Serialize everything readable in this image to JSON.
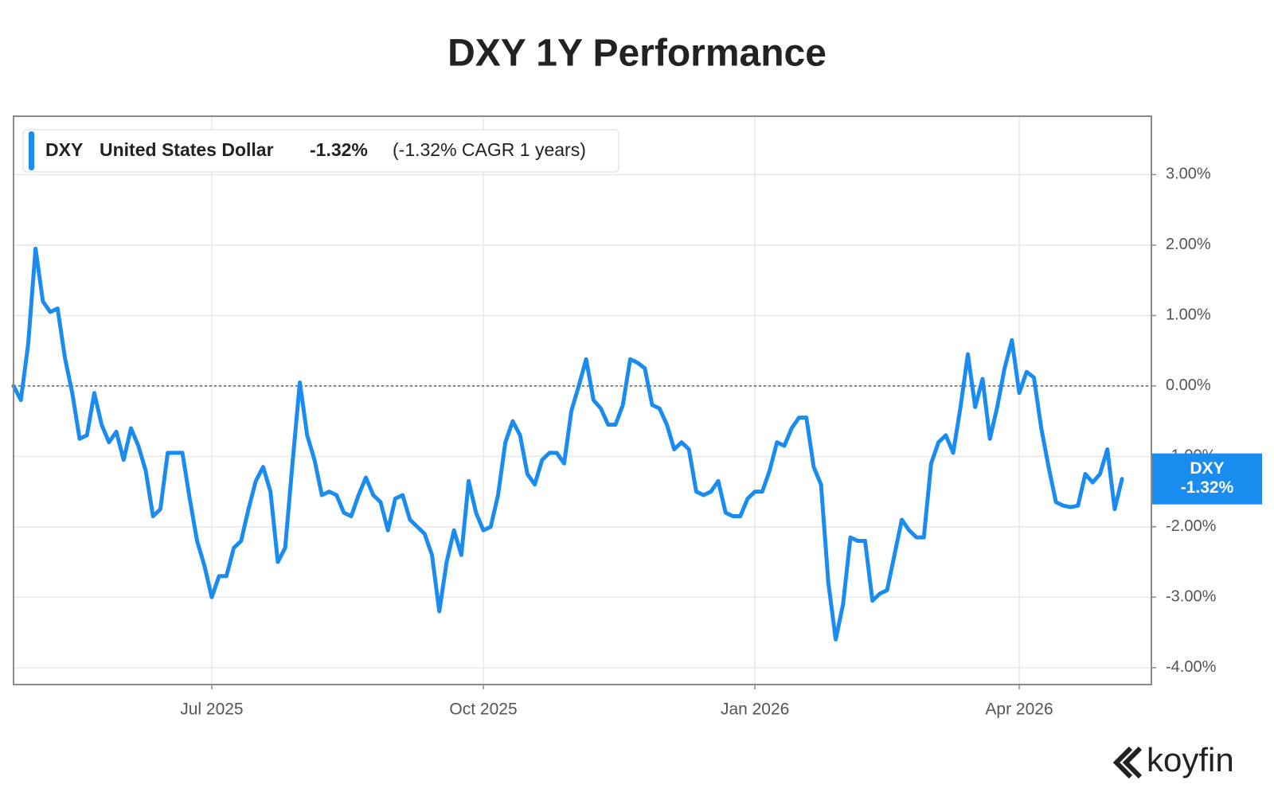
{
  "chart_data": {
    "type": "line",
    "title": "DXY 1Y Performance",
    "categories": [
      null,
      null,
      null,
      null,
      null,
      null,
      null,
      null,
      null,
      null,
      null,
      null,
      null,
      null,
      null,
      null,
      null,
      null,
      null,
      null,
      null,
      null,
      null,
      null,
      null,
      null,
      null,
      "Jul 2025",
      null,
      null,
      null,
      null,
      null,
      null,
      null,
      null,
      null,
      null,
      null,
      null,
      null,
      null,
      null,
      null,
      null,
      null,
      null,
      null,
      null,
      null,
      null,
      null,
      null,
      null,
      null,
      null,
      null,
      null,
      null,
      null,
      null,
      null,
      null,
      null,
      "Oct 2025",
      null,
      null,
      null,
      null,
      null,
      null,
      null,
      null,
      null,
      null,
      null,
      null,
      null,
      null,
      null,
      null,
      null,
      null,
      null,
      null,
      null,
      null,
      null,
      null,
      null,
      null,
      null,
      null,
      null,
      null,
      null,
      null,
      null,
      null,
      null,
      null,
      "Jan 2026",
      null,
      null,
      null,
      null,
      null,
      null,
      null,
      null,
      null,
      null,
      null,
      null,
      null,
      null,
      null,
      null,
      null,
      null,
      null,
      null,
      null,
      null,
      null,
      null,
      null,
      null,
      null,
      null,
      null,
      null,
      null,
      null,
      null,
      null,
      null,
      "Apr 2026",
      null,
      null,
      null,
      null,
      null,
      null,
      null,
      null,
      null,
      null,
      null,
      null,
      null,
      null,
      null,
      null,
      null,
      null
    ],
    "series": [
      {
        "name": "DXY",
        "description": "United States Dollar",
        "change_label": "-1.32%",
        "note": "(-1.32% CAGR 1 years)",
        "color": "#1a8cf0",
        "values": [
          0,
          -0.2,
          0.6,
          1.95,
          1.2,
          1.05,
          1.1,
          0.4,
          -0.1,
          -0.75,
          -0.7,
          -0.1,
          -0.55,
          -0.8,
          -0.65,
          -1.05,
          -0.6,
          -0.85,
          -1.2,
          -1.85,
          -1.75,
          -0.95,
          -0.95,
          -0.95,
          -1.6,
          -2.2,
          -2.55,
          -3.0,
          -2.7,
          -2.7,
          -2.3,
          -2.2,
          -1.75,
          -1.35,
          -1.15,
          -1.5,
          -2.5,
          -2.3,
          -1.1,
          0.05,
          -0.7,
          -1.05,
          -1.55,
          -1.5,
          -1.55,
          -1.8,
          -1.85,
          -1.55,
          -1.3,
          -1.55,
          -1.65,
          -2.05,
          -1.6,
          -1.55,
          -1.9,
          -2.0,
          -2.1,
          -2.4,
          -3.2,
          -2.5,
          -2.05,
          -2.4,
          -1.35,
          -1.8,
          -2.05,
          -2.0,
          -1.55,
          -0.8,
          -0.5,
          -0.7,
          -1.25,
          -1.4,
          -1.05,
          -0.95,
          -0.95,
          -1.1,
          -0.35,
          0.0,
          0.38,
          -0.2,
          -0.32,
          -0.55,
          -0.55,
          -0.27,
          0.38,
          0.33,
          0.25,
          -0.27,
          -0.32,
          -0.55,
          -0.9,
          -0.8,
          -0.9,
          -1.5,
          -1.55,
          -1.5,
          -1.35,
          -1.8,
          -1.85,
          -1.85,
          -1.6,
          -1.5,
          -1.5,
          -1.2,
          -0.8,
          -0.85,
          -0.6,
          -0.45,
          -0.45,
          -1.15,
          -1.4,
          -2.8,
          -3.6,
          -3.1,
          -2.15,
          -2.2,
          -2.2,
          -3.05,
          -2.95,
          -2.9,
          -2.4,
          -1.9,
          -2.05,
          -2.15,
          -2.15,
          -1.1,
          -0.8,
          -0.7,
          -0.95,
          -0.3,
          0.45,
          -0.3,
          0.1,
          -0.75,
          -0.3,
          0.25,
          0.65,
          -0.1,
          0.2,
          0.12,
          -0.6,
          -1.15,
          -1.65,
          -1.7,
          -1.72,
          -1.7,
          -1.25,
          -1.37,
          -1.25,
          -0.9,
          -1.75,
          -1.32,
          null,
          null,
          null,
          null
        ]
      }
    ],
    "ylim": [
      -4.24,
      3.83
    ],
    "yticks": [
      {
        "value": 3,
        "label": "3.00%"
      },
      {
        "value": 2,
        "label": "2.00%"
      },
      {
        "value": 1,
        "label": "1.00%"
      },
      {
        "value": 0,
        "label": "0.00%"
      },
      {
        "value": -1,
        "label": "-1.00%"
      },
      {
        "value": -2,
        "label": "-2.00%"
      },
      {
        "value": -3,
        "label": "-3.00%"
      },
      {
        "value": -4,
        "label": "-4.00%"
      }
    ],
    "axis_side": "right",
    "grid": true,
    "zero_line": true,
    "source": "koyfin"
  }
}
